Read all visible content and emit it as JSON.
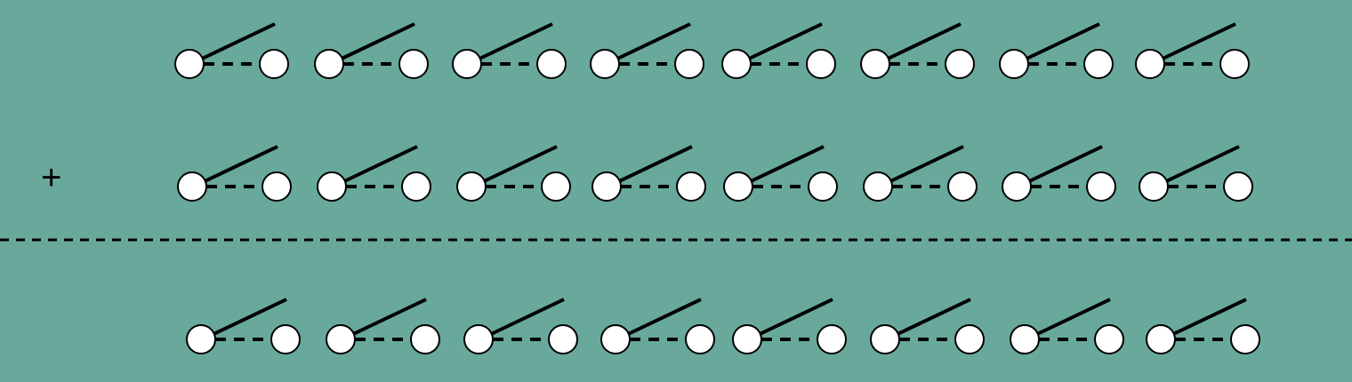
{
  "diagram": {
    "operator_symbol": "+",
    "switch_state": "open",
    "rows": [
      {
        "role": "addend-1",
        "switch_count": 8
      },
      {
        "role": "addend-2",
        "switch_count": 8
      },
      {
        "role": "sum",
        "switch_count": 8
      }
    ],
    "separator": "dashed",
    "colors": {
      "background": "#68a99c",
      "stroke": "#000000",
      "terminal_fill": "#ffffff"
    }
  }
}
